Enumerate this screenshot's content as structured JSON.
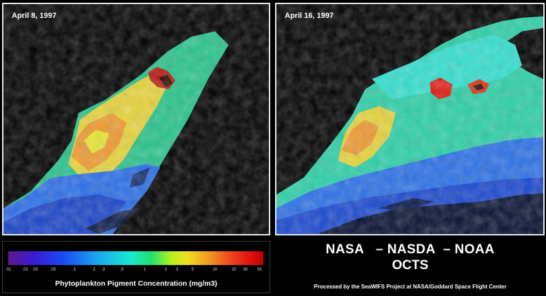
{
  "panels": {
    "left": {
      "date": "April 8, 1997"
    },
    "right": {
      "date": "April 16, 1997"
    }
  },
  "legend": {
    "ticks": [
      ".01",
      ".02",
      ".03",
      ".05",
      ".1",
      ".2",
      ".3",
      ".5",
      "1",
      "2",
      "3",
      "5",
      "10",
      "20",
      "30",
      "50"
    ],
    "title": "Phytoplankton Pigment Concentration  (mg/m3)"
  },
  "footer": {
    "agencies": "NASA   – NASDA  – NOAA",
    "sensor": "OCTS",
    "credit": "Processed by the SeaWIFS Project at NASA/Goddard Space Flight Center"
  },
  "colors": {
    "background": "#000000",
    "panel_border": "#e8e8e8",
    "high_concentration": "#e01010",
    "medium_concentration": "#f0e020",
    "low_concentration": "#1a4cf0"
  }
}
